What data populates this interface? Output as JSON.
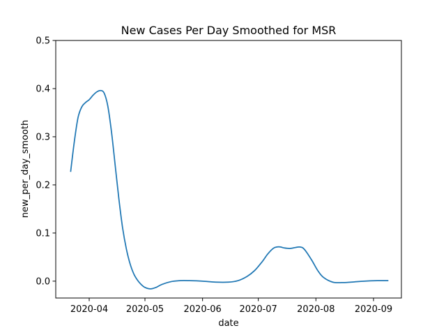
{
  "chart_data": {
    "type": "line",
    "title": "New Cases Per Day Smoothed for MSR",
    "xlabel": "date",
    "ylabel": "new_per_day_smooth",
    "x_ticks": [
      "2020-04-01",
      "2020-05-01",
      "2020-06-01",
      "2020-07-01",
      "2020-08-01",
      "2020-09-01"
    ],
    "x_tick_labels": [
      "2020-04",
      "2020-05",
      "2020-06",
      "2020-07",
      "2020-08",
      "2020-09"
    ],
    "y_ticks": [
      0.0,
      0.1,
      0.2,
      0.3,
      0.4,
      0.5
    ],
    "y_tick_labels": [
      "0.0",
      "0.1",
      "0.2",
      "0.3",
      "0.4",
      "0.5"
    ],
    "ylim": [
      -0.035,
      0.5
    ],
    "xlim": [
      "2020-03-14",
      "2020-09-16"
    ],
    "grid": false,
    "series": [
      {
        "color": "#1f77b4",
        "x": [
          "2020-03-22",
          "2020-03-24",
          "2020-03-26",
          "2020-03-28",
          "2020-03-30",
          "2020-04-01",
          "2020-04-03",
          "2020-04-05",
          "2020-04-07",
          "2020-04-09",
          "2020-04-11",
          "2020-04-13",
          "2020-04-15",
          "2020-04-17",
          "2020-04-19",
          "2020-04-21",
          "2020-04-23",
          "2020-04-25",
          "2020-04-27",
          "2020-04-29",
          "2020-05-01",
          "2020-05-04",
          "2020-05-07",
          "2020-05-10",
          "2020-05-15",
          "2020-05-20",
          "2020-05-25",
          "2020-06-01",
          "2020-06-08",
          "2020-06-15",
          "2020-06-20",
          "2020-06-25",
          "2020-06-29",
          "2020-07-03",
          "2020-07-06",
          "2020-07-09",
          "2020-07-11",
          "2020-07-13",
          "2020-07-15",
          "2020-07-18",
          "2020-07-21",
          "2020-07-23",
          "2020-07-25",
          "2020-07-27",
          "2020-07-30",
          "2020-08-02",
          "2020-08-05",
          "2020-08-10",
          "2020-08-15",
          "2020-08-20",
          "2020-08-27",
          "2020-09-03",
          "2020-09-09"
        ],
        "y": [
          0.227,
          0.29,
          0.34,
          0.362,
          0.371,
          0.377,
          0.386,
          0.393,
          0.396,
          0.391,
          0.364,
          0.31,
          0.24,
          0.17,
          0.11,
          0.067,
          0.036,
          0.015,
          0.002,
          -0.007,
          -0.013,
          -0.016,
          -0.013,
          -0.007,
          -0.001,
          0.001,
          0.001,
          0.0,
          -0.002,
          -0.002,
          0.001,
          0.01,
          0.022,
          0.04,
          0.056,
          0.068,
          0.071,
          0.071,
          0.069,
          0.068,
          0.07,
          0.071,
          0.069,
          0.06,
          0.042,
          0.022,
          0.008,
          -0.002,
          -0.003,
          -0.002,
          0.0,
          0.001,
          0.001
        ]
      }
    ]
  }
}
